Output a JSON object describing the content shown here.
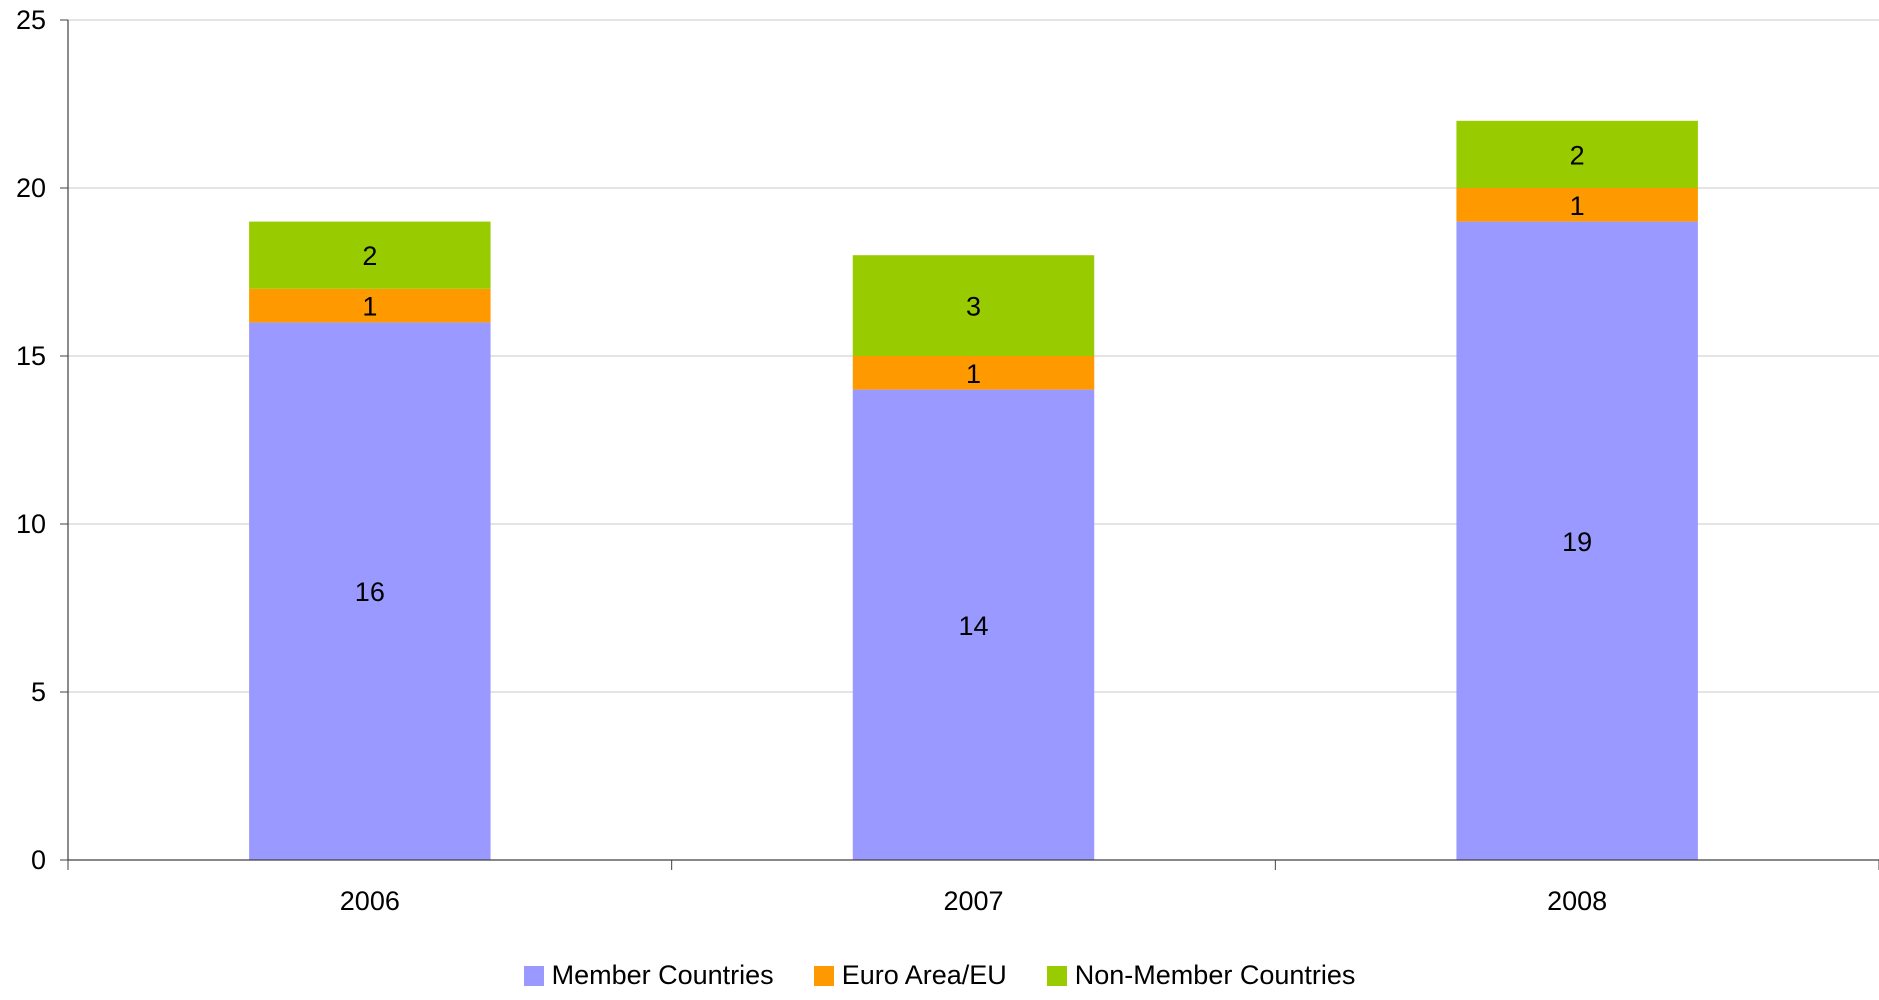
{
  "chart_data": {
    "type": "bar",
    "stacked": true,
    "categories": [
      "2006",
      "2007",
      "2008"
    ],
    "series": [
      {
        "name": "Member Countries",
        "values": [
          16,
          14,
          19
        ],
        "color": "#9999ff"
      },
      {
        "name": "Euro Area/EU",
        "values": [
          1,
          1,
          1
        ],
        "color": "#ff9900"
      },
      {
        "name": "Non-Member Countries",
        "values": [
          2,
          3,
          2
        ],
        "color": "#99cc00"
      }
    ],
    "ylim": [
      0,
      25
    ],
    "yticks": [
      "0",
      "5",
      "10",
      "15",
      "20",
      "25"
    ],
    "grid": true,
    "legend": "bottom",
    "data_labels": true
  }
}
